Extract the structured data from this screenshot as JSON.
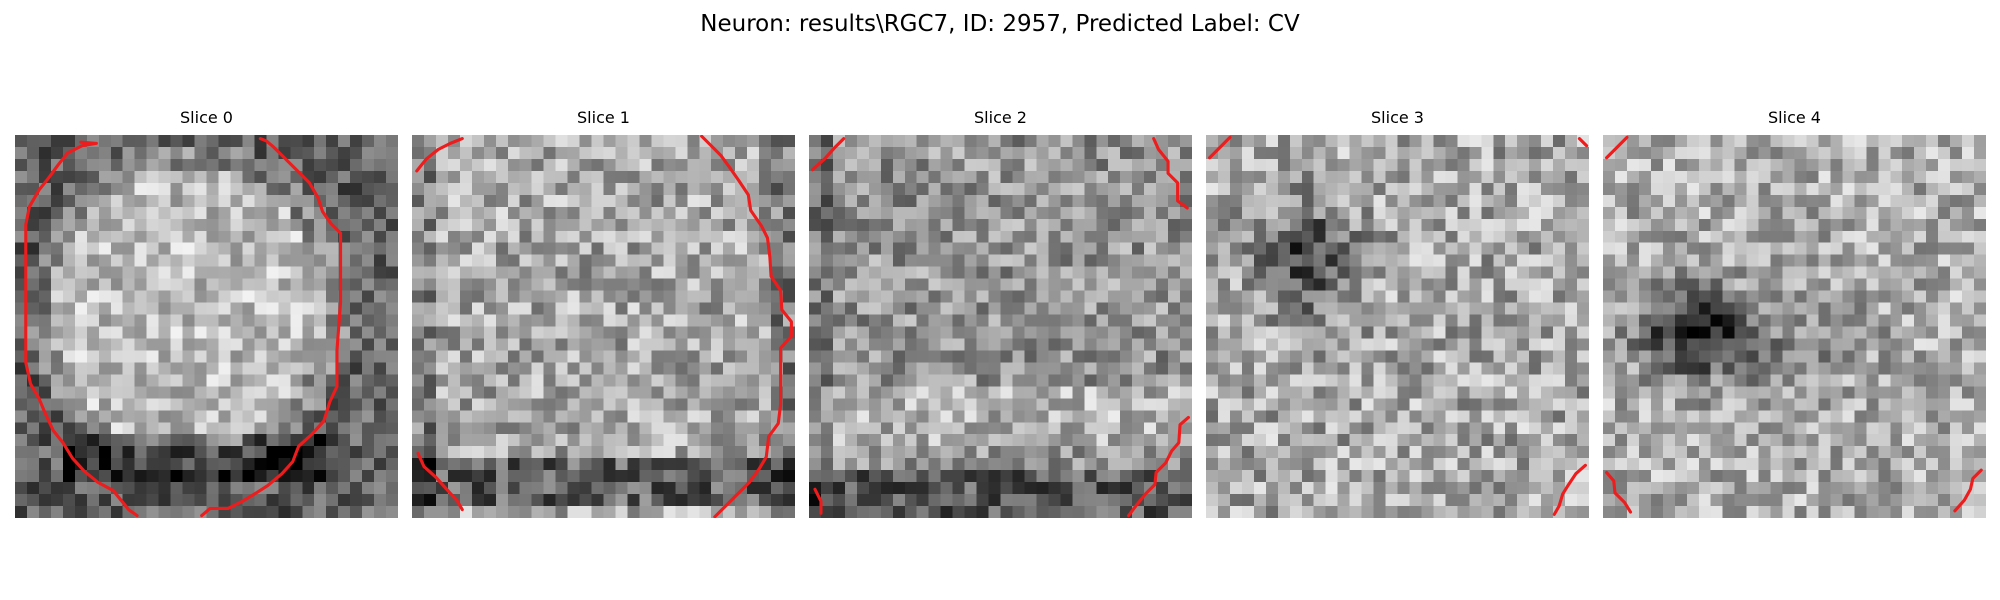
{
  "figure": {
    "title": "Neuron: results\\RGC7, ID: 2957, Predicted Label: CV"
  },
  "colors": {
    "contour": "#ee1c1c",
    "background": "#ffffff"
  },
  "slices": [
    {
      "title": "Slice 0",
      "pattern": "disc-bright"
    },
    {
      "title": "Slice 1",
      "pattern": "bright-top-dark-bottom"
    },
    {
      "title": "Slice 2",
      "pattern": "mixed-bright-bottom"
    },
    {
      "title": "Slice 3",
      "pattern": "dark-blob-upper-left"
    },
    {
      "title": "Slice 4",
      "pattern": "dark-blob-left"
    }
  ]
}
